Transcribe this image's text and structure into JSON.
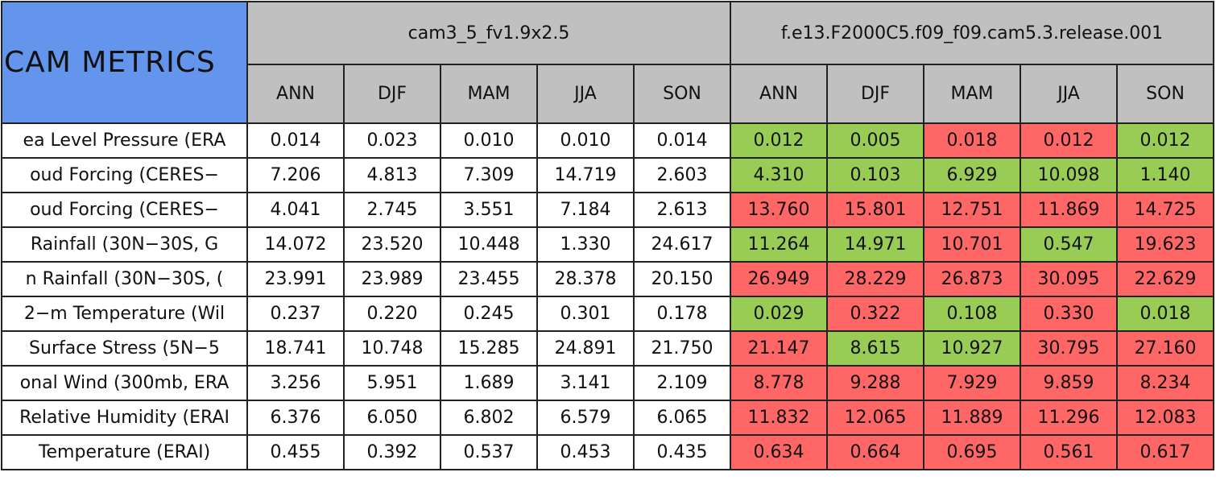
{
  "table": {
    "title": "CAM METRICS",
    "groups": [
      {
        "name": "cam3_5_fv1.9x2.5",
        "seasons": [
          "ANN",
          "DJF",
          "MAM",
          "JJA",
          "SON"
        ]
      },
      {
        "name": "f.e13.F2000C5.f09_f09.cam5.3.release.001",
        "seasons": [
          "ANN",
          "DJF",
          "MAM",
          "JJA",
          "SON"
        ]
      }
    ],
    "rows": [
      {
        "label": "ea Level Pressure (ERA",
        "values": [
          "0.014",
          "0.023",
          "0.010",
          "0.010",
          "0.014",
          "0.012",
          "0.005",
          "0.018",
          "0.012",
          "0.012"
        ],
        "colors": [
          "#99cc55",
          "#99cc55",
          "#ff6666",
          "#ff6666",
          "#99cc55"
        ]
      },
      {
        "label": "oud Forcing (CERES−",
        "values": [
          "7.206",
          "4.813",
          "7.309",
          "14.719",
          "2.603",
          "4.310",
          "0.103",
          "6.929",
          "10.098",
          "1.140"
        ],
        "colors": [
          "#99cc55",
          "#99cc55",
          "#99cc55",
          "#99cc55",
          "#99cc55"
        ]
      },
      {
        "label": "oud Forcing (CERES−",
        "values": [
          "4.041",
          "2.745",
          "3.551",
          "7.184",
          "2.613",
          "13.760",
          "15.801",
          "12.751",
          "11.869",
          "14.725"
        ],
        "colors": [
          "#ff6666",
          "#ff6666",
          "#ff6666",
          "#ff6666",
          "#ff6666"
        ]
      },
      {
        "label": "Rainfall (30N−30S, G",
        "values": [
          "14.072",
          "23.520",
          "10.448",
          "1.330",
          "24.617",
          "11.264",
          "14.971",
          "10.701",
          "0.547",
          "19.623"
        ],
        "colors": [
          "#99cc55",
          "#99cc55",
          "#ff6666",
          "#99cc55",
          "#ff6666"
        ]
      },
      {
        "label": "n Rainfall (30N−30S, (",
        "values": [
          "23.991",
          "23.989",
          "23.455",
          "28.378",
          "20.150",
          "26.949",
          "28.229",
          "26.873",
          "30.095",
          "22.629"
        ],
        "colors": [
          "#ff6666",
          "#ff6666",
          "#ff6666",
          "#ff6666",
          "#ff6666"
        ]
      },
      {
        "label": "2−m Temperature (Wil",
        "values": [
          "0.237",
          "0.220",
          "0.245",
          "0.301",
          "0.178",
          "0.029",
          "0.322",
          "0.108",
          "0.330",
          "0.018"
        ],
        "colors": [
          "#99cc55",
          "#ff6666",
          "#99cc55",
          "#ff6666",
          "#99cc55"
        ]
      },
      {
        "label": "Surface Stress (5N−5",
        "values": [
          "18.741",
          "10.748",
          "15.285",
          "24.891",
          "21.750",
          "21.147",
          "8.615",
          "10.927",
          "30.795",
          "27.160"
        ],
        "colors": [
          "#ff6666",
          "#99cc55",
          "#99cc55",
          "#ff6666",
          "#ff6666"
        ]
      },
      {
        "label": "onal Wind (300mb, ERA",
        "values": [
          "3.256",
          "5.951",
          "1.689",
          "3.141",
          "2.109",
          "8.778",
          "9.288",
          "7.929",
          "9.859",
          "8.234"
        ],
        "colors": [
          "#ff6666",
          "#ff6666",
          "#ff6666",
          "#ff6666",
          "#ff6666"
        ]
      },
      {
        "label": "Relative Humidity (ERAI",
        "values": [
          "6.376",
          "6.050",
          "6.802",
          "6.579",
          "6.065",
          "11.832",
          "12.065",
          "11.889",
          "11.296",
          "12.083"
        ],
        "colors": [
          "#ff6666",
          "#ff6666",
          "#ff6666",
          "#ff6666",
          "#ff6666"
        ]
      },
      {
        "label": "Temperature (ERAI)",
        "values": [
          "0.455",
          "0.392",
          "0.537",
          "0.453",
          "0.435",
          "0.634",
          "0.664",
          "0.695",
          "0.561",
          "0.617"
        ],
        "colors": [
          "#ff6666",
          "#ff6666",
          "#ff6666",
          "#ff6666",
          "#ff6666"
        ]
      }
    ]
  }
}
